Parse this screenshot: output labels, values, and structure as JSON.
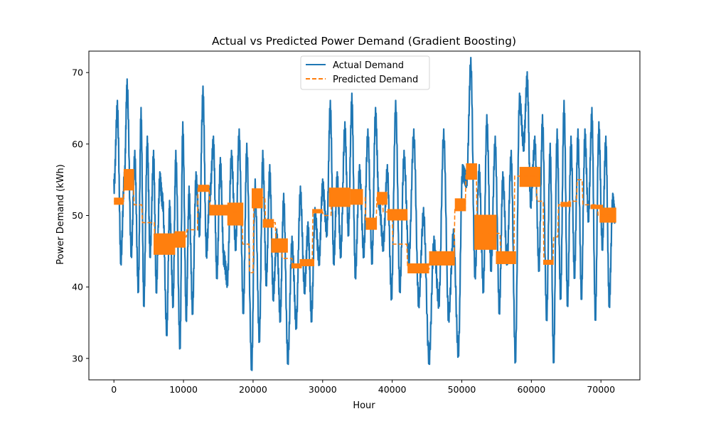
{
  "chart_data": {
    "type": "line",
    "title": "Actual vs Predicted Power Demand (Gradient Boosting)",
    "xlabel": "Hour",
    "ylabel": "Power Demand (kWh)",
    "xlim": [
      -3600,
      75600
    ],
    "ylim": [
      27,
      73
    ],
    "xticks": [
      0,
      10000,
      20000,
      30000,
      40000,
      50000,
      60000,
      70000
    ],
    "yticks": [
      30,
      40,
      50,
      60,
      70
    ],
    "grid": false,
    "legend_position": "upper center",
    "series": [
      {
        "name": "Actual Demand",
        "style": "solid",
        "color": "#1f77b4",
        "x": [
          0,
          500,
          1000,
          1500,
          1900,
          2500,
          3000,
          3500,
          3900,
          4300,
          4800,
          5200,
          5700,
          6100,
          6600,
          7000,
          7600,
          8000,
          8500,
          8900,
          9500,
          9900,
          10400,
          10800,
          11300,
          11800,
          12300,
          12800,
          13300,
          13800,
          14300,
          14800,
          15300,
          15800,
          16300,
          16900,
          17500,
          18000,
          18600,
          19100,
          19800,
          20300,
          20900,
          21400,
          21900,
          22400,
          22900,
          23400,
          23900,
          24400,
          25000,
          25600,
          26200,
          26800,
          27400,
          27900,
          28400,
          28900,
          29500,
          30000,
          30600,
          31100,
          31600,
          32100,
          32600,
          33200,
          33700,
          34200,
          34700,
          35300,
          35900,
          36500,
          37100,
          37600,
          38100,
          38700,
          39300,
          39900,
          40500,
          41100,
          41700,
          42400,
          43100,
          43800,
          44500,
          45300,
          46000,
          46700,
          47400,
          48100,
          48800,
          49500,
          50100,
          50700,
          51300,
          51900,
          52500,
          53100,
          53600,
          54200,
          54800,
          55400,
          55900,
          56500,
          57100,
          57700,
          58300,
          58900,
          59400,
          59900,
          60500,
          61100,
          61600,
          62200,
          62700,
          63200,
          63700,
          64200,
          64700,
          65200,
          65700,
          66200,
          66700,
          67200,
          67700,
          68200,
          68700,
          69200,
          69700,
          70200,
          70700,
          71200,
          71700,
          72000
        ],
        "y": [
          54,
          65,
          44,
          55,
          68,
          45,
          58,
          40,
          64,
          38,
          60,
          45,
          58,
          40,
          55,
          52,
          34,
          51,
          38,
          58,
          32,
          62,
          36,
          53,
          37,
          55,
          48,
          67,
          45,
          53,
          60,
          42,
          57,
          44,
          41,
          58,
          46,
          61,
          37,
          59,
          29,
          54,
          33,
          58,
          41,
          56,
          39,
          47,
          36,
          52,
          30,
          46,
          35,
          53,
          40,
          48,
          36,
          50,
          44,
          54,
          48,
          65,
          44,
          55,
          45,
          62,
          48,
          66,
          42,
          56,
          45,
          61,
          44,
          64,
          52,
          46,
          56,
          39,
          65,
          40,
          58,
          44,
          61,
          38,
          50,
          30,
          46,
          38,
          61,
          36,
          47,
          31,
          56,
          55,
          71,
          42,
          56,
          40,
          63,
          43,
          60,
          37,
          55,
          44,
          58,
          30,
          66,
          60,
          69,
          52,
          60,
          43,
          63,
          36,
          59,
          30,
          61,
          39,
          65,
          38,
          60,
          42,
          61,
          39,
          61,
          50,
          64,
          36,
          62,
          46,
          60,
          38,
          52,
          50
        ]
      },
      {
        "name": "Predicted Demand",
        "style": "dashed",
        "color": "#ff7f0e",
        "x": [
          0,
          1400,
          1500,
          2800,
          2900,
          4000,
          4100,
          5800,
          5900,
          8800,
          8900,
          10400,
          10500,
          12000,
          12100,
          13700,
          13800,
          16900,
          17000,
          18400,
          18500,
          19400,
          19500,
          20000,
          20100,
          21700,
          21800,
          23200,
          23300,
          24100,
          24200,
          25600,
          25700,
          27000,
          27100,
          28500,
          28600,
          30000,
          30100,
          31200,
          31300,
          34400,
          34500,
          36100,
          36200,
          37700,
          37800,
          38600,
          38700,
          40000,
          40100,
          42100,
          42200,
          42300,
          42400,
          45300,
          45400,
          48900,
          49000,
          50500,
          50600,
          52100,
          52200,
          55500,
          55600,
          57500,
          57600,
          60700,
          60800,
          61700,
          61800,
          63100,
          63200,
          63800,
          63900,
          65300,
          65400,
          66500,
          66600,
          67300,
          67400,
          69500,
          69600,
          71700
        ],
        "y": [
          52,
          52,
          55,
          55,
          51.5,
          51.5,
          49,
          49,
          46,
          46,
          47,
          47,
          48,
          48,
          54,
          54,
          51,
          51,
          50.5,
          50.5,
          46,
          46,
          42,
          42,
          52.5,
          52.5,
          49,
          49,
          46,
          46,
          44,
          44,
          43,
          43,
          43.5,
          43.5,
          50.5,
          50.5,
          50,
          50,
          52.5,
          52.5,
          52.5,
          52.5,
          49,
          49,
          52.5,
          52.5,
          50.5,
          50.5,
          46,
          46,
          43,
          43,
          42.5,
          42.5,
          44,
          44,
          51,
          51,
          56,
          56,
          47.5,
          47.5,
          44,
          44,
          55.5,
          55.5,
          52,
          52,
          43.5,
          43.5,
          47,
          47,
          51.5,
          51.5,
          52,
          52,
          55,
          55,
          51.5,
          51.5,
          50,
          50
        ]
      }
    ],
    "predicted_bands": [
      {
        "x0": 0,
        "x1": 1400,
        "y0": 51.5,
        "y1": 52.5
      },
      {
        "x0": 1400,
        "x1": 2900,
        "y0": 53.5,
        "y1": 56.5
      },
      {
        "x0": 5700,
        "x1": 8800,
        "y0": 44.5,
        "y1": 47.5
      },
      {
        "x0": 8700,
        "x1": 10300,
        "y0": 45.5,
        "y1": 47.8
      },
      {
        "x0": 12100,
        "x1": 13700,
        "y0": 53.3,
        "y1": 54.3
      },
      {
        "x0": 13700,
        "x1": 16800,
        "y0": 50,
        "y1": 51.5
      },
      {
        "x0": 16300,
        "x1": 18600,
        "y0": 48.6,
        "y1": 51.8
      },
      {
        "x0": 19800,
        "x1": 21400,
        "y0": 51,
        "y1": 53.8
      },
      {
        "x0": 21400,
        "x1": 23000,
        "y0": 48.3,
        "y1": 49.5
      },
      {
        "x0": 22600,
        "x1": 25000,
        "y0": 44.8,
        "y1": 46.8
      },
      {
        "x0": 25500,
        "x1": 27000,
        "y0": 42.6,
        "y1": 43.3
      },
      {
        "x0": 26700,
        "x1": 28800,
        "y0": 42.9,
        "y1": 43.9
      },
      {
        "x0": 28500,
        "x1": 30000,
        "y0": 50.3,
        "y1": 50.9
      },
      {
        "x0": 30900,
        "x1": 34000,
        "y0": 51.2,
        "y1": 53.9
      },
      {
        "x0": 34000,
        "x1": 35800,
        "y0": 51.5,
        "y1": 53.7
      },
      {
        "x0": 36200,
        "x1": 37800,
        "y0": 48,
        "y1": 49.7
      },
      {
        "x0": 37800,
        "x1": 39300,
        "y0": 51.5,
        "y1": 53.3
      },
      {
        "x0": 39300,
        "x1": 42200,
        "y0": 49.3,
        "y1": 50.9
      },
      {
        "x0": 42200,
        "x1": 45300,
        "y0": 41.9,
        "y1": 43.3
      },
      {
        "x0": 45300,
        "x1": 49000,
        "y0": 43,
        "y1": 45
      },
      {
        "x0": 49000,
        "x1": 50600,
        "y0": 50.6,
        "y1": 52.4
      },
      {
        "x0": 50600,
        "x1": 52200,
        "y0": 55,
        "y1": 57.3
      },
      {
        "x0": 51800,
        "x1": 55000,
        "y0": 45.2,
        "y1": 50.1
      },
      {
        "x0": 54900,
        "x1": 57800,
        "y0": 43.2,
        "y1": 45
      },
      {
        "x0": 58300,
        "x1": 61300,
        "y0": 54,
        "y1": 56.8
      },
      {
        "x0": 61700,
        "x1": 63200,
        "y0": 43.1,
        "y1": 43.8
      },
      {
        "x0": 64200,
        "x1": 65700,
        "y0": 51.2,
        "y1": 51.9
      },
      {
        "x0": 68500,
        "x1": 70300,
        "y0": 50.9,
        "y1": 51.5
      },
      {
        "x0": 69800,
        "x1": 72200,
        "y0": 49,
        "y1": 51.1
      }
    ]
  }
}
